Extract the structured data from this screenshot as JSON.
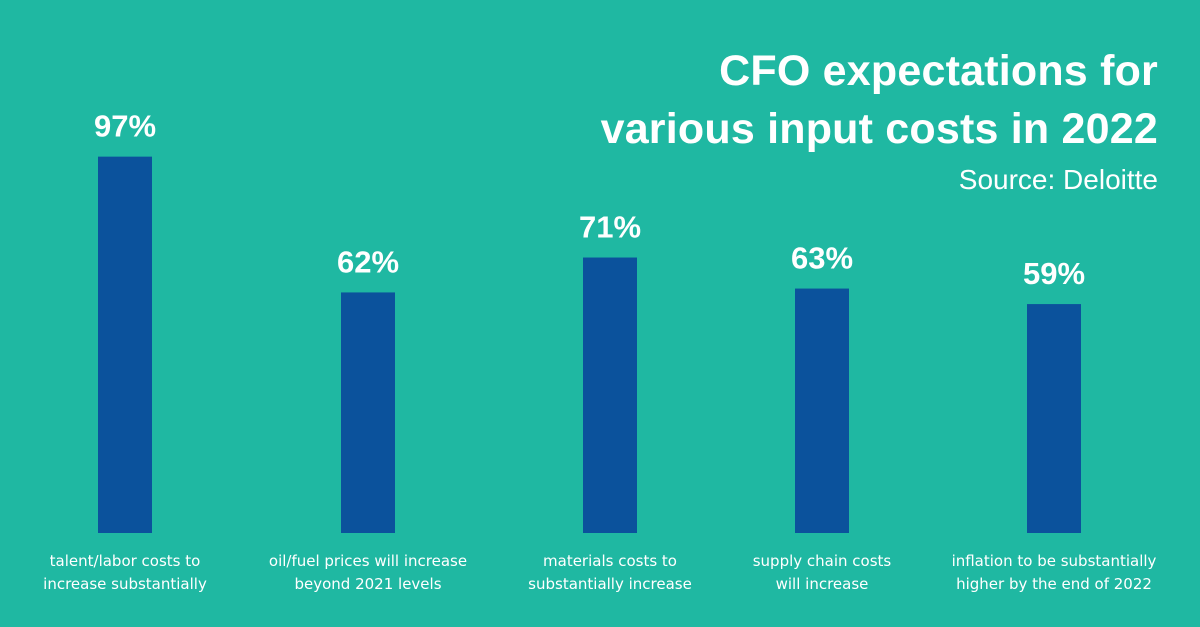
{
  "chart_data": {
    "type": "bar",
    "title_lines": [
      "CFO expectations for",
      "various input costs in 2022"
    ],
    "subtitle": "Source: Deloitte",
    "categories": [
      [
        "talent/labor costs to",
        "increase substantially"
      ],
      [
        "oil/fuel prices will increase",
        "beyond 2021 levels"
      ],
      [
        "materials costs to",
        "substantially increase"
      ],
      [
        "supply chain costs",
        "will increase"
      ],
      [
        "inflation to be substantially",
        "higher by the end of 2022"
      ]
    ],
    "values": [
      97,
      62,
      71,
      63,
      59
    ],
    "value_labels": [
      "97%",
      "62%",
      "71%",
      "63%",
      "59%"
    ],
    "ylim": [
      0,
      100
    ],
    "grid": false,
    "colors": {
      "background": "#1fb8a2",
      "bar": "#0b529c",
      "text": "#ffffff"
    }
  }
}
